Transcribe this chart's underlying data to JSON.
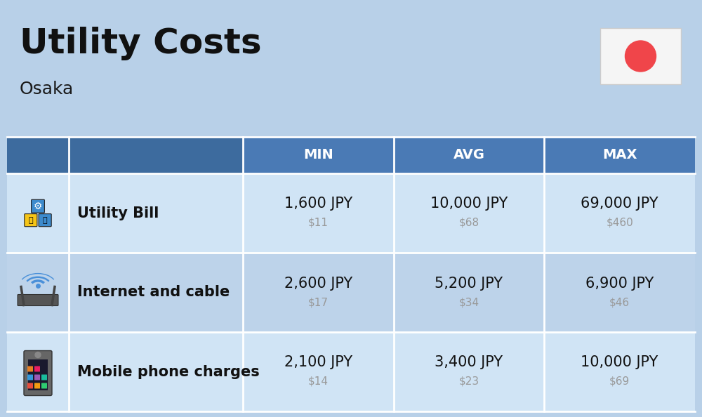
{
  "title": "Utility Costs",
  "subtitle": "Osaka",
  "background_color": "#b8d0e8",
  "header_bg_color": "#4a7ab5",
  "header_text_color": "#ffffff",
  "row_bg_color_1": "#d0e4f5",
  "row_bg_color_2": "#bdd3ea",
  "col_headers": [
    "MIN",
    "AVG",
    "MAX"
  ],
  "rows": [
    {
      "label": "Utility Bill",
      "min_jpy": "1,600 JPY",
      "min_usd": "$11",
      "avg_jpy": "10,000 JPY",
      "avg_usd": "$68",
      "max_jpy": "69,000 JPY",
      "max_usd": "$460"
    },
    {
      "label": "Internet and cable",
      "min_jpy": "2,600 JPY",
      "min_usd": "$17",
      "avg_jpy": "5,200 JPY",
      "avg_usd": "$34",
      "max_jpy": "6,900 JPY",
      "max_usd": "$46"
    },
    {
      "label": "Mobile phone charges",
      "min_jpy": "2,100 JPY",
      "min_usd": "$14",
      "avg_jpy": "3,400 JPY",
      "avg_usd": "$23",
      "max_jpy": "10,000 JPY",
      "max_usd": "$69"
    }
  ],
  "jpy_fontsize": 15,
  "usd_fontsize": 11,
  "label_fontsize": 15,
  "header_fontsize": 14,
  "title_fontsize": 36,
  "subtitle_fontsize": 18,
  "usd_color": "#999999",
  "japan_flag_red": "#f0454a",
  "japan_flag_white": "#f5f5f5",
  "fig_width": 10.0,
  "fig_height": 5.94
}
